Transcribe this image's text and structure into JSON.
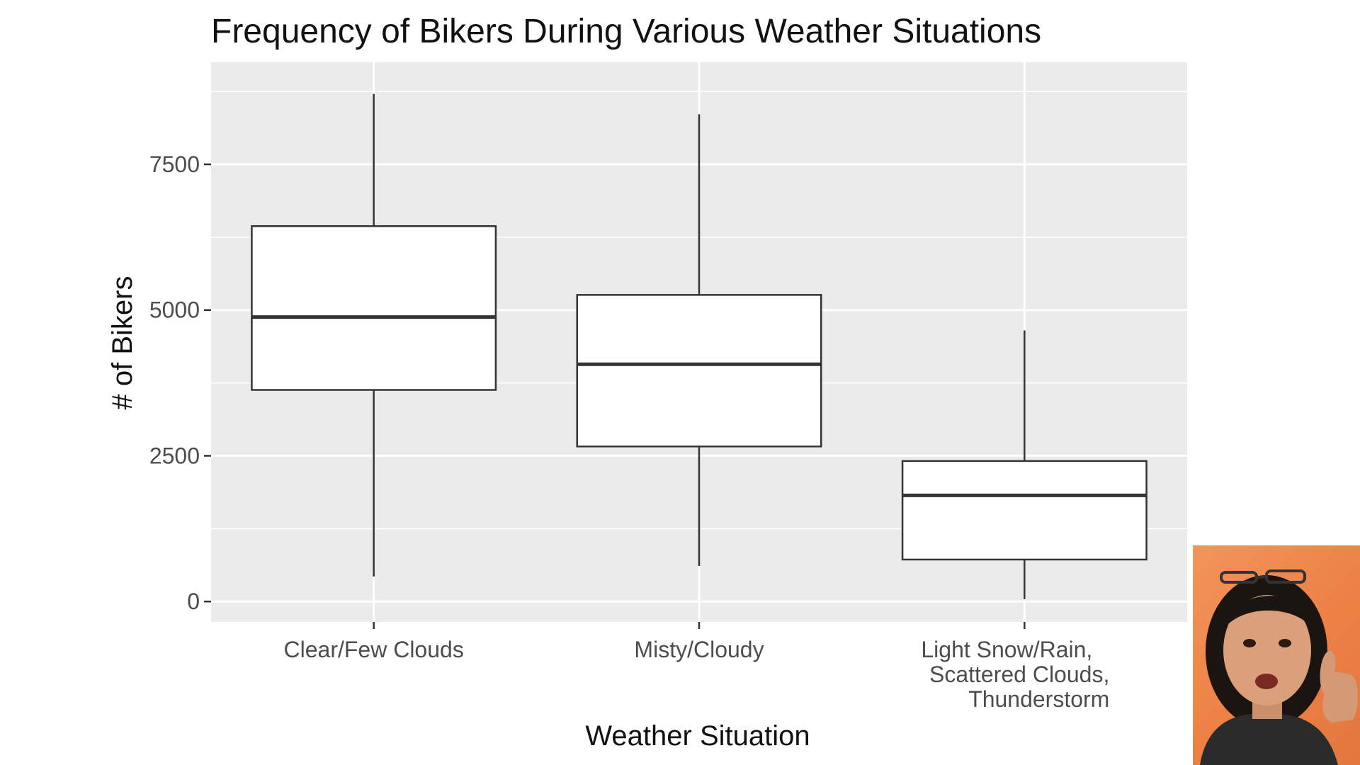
{
  "chart_data": {
    "type": "boxplot",
    "title": "Frequency of Bikers During Various Weather Situations",
    "xlabel": "Weather Situation",
    "ylabel": "# of Bikers",
    "ylim": [
      -350,
      9250
    ],
    "yticks": [
      0,
      2500,
      5000,
      7500
    ],
    "ytick_labels": [
      "0",
      "2500",
      "5000",
      "7500"
    ],
    "grid": true,
    "categories": [
      {
        "label_lines": [
          "Clear/Few Clouds"
        ],
        "min": 430,
        "q1": 3630,
        "median": 4880,
        "q3": 6440,
        "max": 8710
      },
      {
        "label_lines": [
          "Misty/Cloudy"
        ],
        "min": 610,
        "q1": 2660,
        "median": 4070,
        "q3": 5260,
        "max": 8360
      },
      {
        "label_lines": [
          "Light Snow/Rain,",
          "Scattered Clouds,",
          "Thunderstorm"
        ],
        "min": 40,
        "q1": 720,
        "median": 1820,
        "q3": 2410,
        "max": 4650
      }
    ],
    "colors": {
      "panel_background": "#ebebeb",
      "grid": "#ffffff",
      "box_fill": "#ffffff",
      "box_stroke": "#333333"
    }
  },
  "webcam": {
    "icon": "presenter-webcam-thumbnail"
  }
}
